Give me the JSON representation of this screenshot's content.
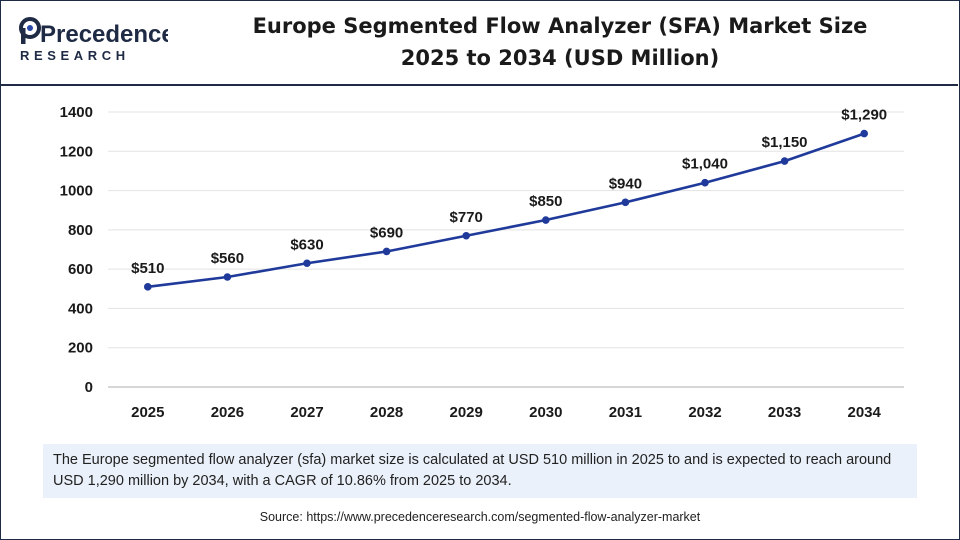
{
  "brand": {
    "name_top": "Precedence",
    "name_bottom": "RESEARCH",
    "colors": {
      "navy": "#1f2a44",
      "accent": "#2b47a8"
    }
  },
  "title": {
    "line1": "Europe Segmented Flow Analyzer (SFA) Market Size",
    "line2": "2025 to 2034 (USD Million)"
  },
  "chart_data": {
    "type": "line",
    "title": "Europe Segmented Flow Analyzer (SFA) Market Size 2025 to 2034 (USD Million)",
    "xlabel": "",
    "ylabel": "",
    "categories": [
      "2025",
      "2026",
      "2027",
      "2028",
      "2029",
      "2030",
      "2031",
      "2032",
      "2033",
      "2034"
    ],
    "series": [
      {
        "name": "Market Size",
        "values": [
          510,
          560,
          630,
          690,
          770,
          850,
          940,
          1040,
          1150,
          1290
        ],
        "labels": [
          "$510",
          "$560",
          "$630",
          "$690",
          "$770",
          "$850",
          "$940",
          "$1,040",
          "$1,150",
          "$1,290"
        ],
        "color": "#1f3a9a"
      }
    ],
    "ylim": [
      0,
      1400
    ],
    "yticks": [
      "0",
      "200",
      "400",
      "600",
      "800",
      "1000",
      "1200",
      "1400"
    ],
    "grid": true,
    "legend": "none"
  },
  "summary": "The Europe segmented flow analyzer (sfa) market size is calculated at USD 510 million in 2025 to and is expected to reach around USD 1,290 million by 2034, with a CAGR of 10.86% from 2025 to 2034.",
  "source": "Source: https://www.precedenceresearch.com/segmented-flow-analyzer-market"
}
